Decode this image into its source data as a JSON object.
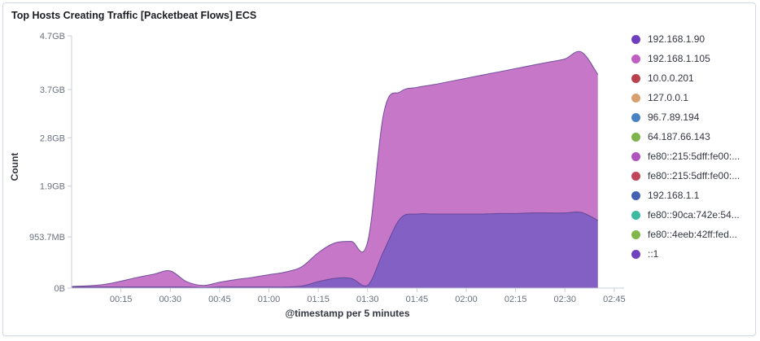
{
  "panel": {
    "title": "Top Hosts Creating Traffic [Packetbeat Flows] ECS"
  },
  "legend": [
    {
      "label": "192.168.1.90",
      "color": "#6f3fbf"
    },
    {
      "label": "192.168.1.105",
      "color": "#c05ec2"
    },
    {
      "label": "10.0.0.201",
      "color": "#b9404c"
    },
    {
      "label": "127.0.0.1",
      "color": "#d9a06f"
    },
    {
      "label": "96.7.89.194",
      "color": "#4a83c4"
    },
    {
      "label": "64.187.66.143",
      "color": "#7db44b"
    },
    {
      "label": "fe80::215:5dff:fe00:...",
      "color": "#b053c0"
    },
    {
      "label": "fe80::215:5dff:fe00:...",
      "color": "#c04658"
    },
    {
      "label": "192.168.1.1",
      "color": "#4462b4"
    },
    {
      "label": "fe80::90ca:742e:54...",
      "color": "#3cbaa2"
    },
    {
      "label": "fe80::4eeb:42ff:fed...",
      "color": "#82b84a"
    },
    {
      "label": "::1",
      "color": "#7142c0"
    }
  ],
  "chart_data": {
    "type": "area",
    "stacked": true,
    "xlabel": "@timestamp per 5 minutes",
    "ylabel": "Count",
    "xlim": [
      0,
      2.8
    ],
    "ylim": [
      0,
      4.7
    ],
    "y_unit": "GB",
    "x_ticks": [
      {
        "value": 0.25,
        "label": "00:15"
      },
      {
        "value": 0.5,
        "label": "00:30"
      },
      {
        "value": 0.75,
        "label": "00:45"
      },
      {
        "value": 1.0,
        "label": "01:00"
      },
      {
        "value": 1.25,
        "label": "01:15"
      },
      {
        "value": 1.5,
        "label": "01:30"
      },
      {
        "value": 1.75,
        "label": "01:45"
      },
      {
        "value": 2.0,
        "label": "02:00"
      },
      {
        "value": 2.25,
        "label": "02:15"
      },
      {
        "value": 2.5,
        "label": "02:30"
      },
      {
        "value": 2.75,
        "label": "02:45"
      }
    ],
    "y_ticks": [
      {
        "value": 0,
        "label": "0B"
      },
      {
        "value": 0.9537,
        "label": "953.7MB"
      },
      {
        "value": 1.9,
        "label": "1.9GB"
      },
      {
        "value": 2.8,
        "label": "2.8GB"
      },
      {
        "value": 3.7,
        "label": "3.7GB"
      },
      {
        "value": 4.7,
        "label": "4.7GB"
      }
    ],
    "x": [
      0.0,
      0.167,
      0.333,
      0.417,
      0.5,
      0.583,
      0.667,
      0.75,
      0.833,
      0.917,
      1.0,
      1.083,
      1.167,
      1.25,
      1.333,
      1.417,
      1.5,
      1.583,
      1.667,
      1.75,
      1.833,
      1.917,
      2.0,
      2.083,
      2.167,
      2.25,
      2.333,
      2.417,
      2.5,
      2.583,
      2.667
    ],
    "series": [
      {
        "name": "192.168.1.90",
        "color": "#8260c4",
        "values": [
          0.02,
          0.02,
          0.02,
          0.02,
          0.02,
          0.02,
          0.01,
          0.02,
          0.02,
          0.02,
          0.02,
          0.02,
          0.04,
          0.12,
          0.18,
          0.18,
          0.05,
          0.7,
          1.3,
          1.38,
          1.38,
          1.38,
          1.38,
          1.38,
          1.39,
          1.39,
          1.4,
          1.4,
          1.4,
          1.41,
          1.26
        ]
      },
      {
        "name": "192.168.1.105",
        "color": "#c777c8",
        "values": [
          0.01,
          0.05,
          0.18,
          0.24,
          0.3,
          0.1,
          0.04,
          0.09,
          0.14,
          0.18,
          0.23,
          0.28,
          0.36,
          0.54,
          0.66,
          0.69,
          0.81,
          2.58,
          2.36,
          2.36,
          2.41,
          2.47,
          2.53,
          2.59,
          2.64,
          2.7,
          2.75,
          2.81,
          2.87,
          2.99,
          2.72
        ]
      }
    ]
  }
}
